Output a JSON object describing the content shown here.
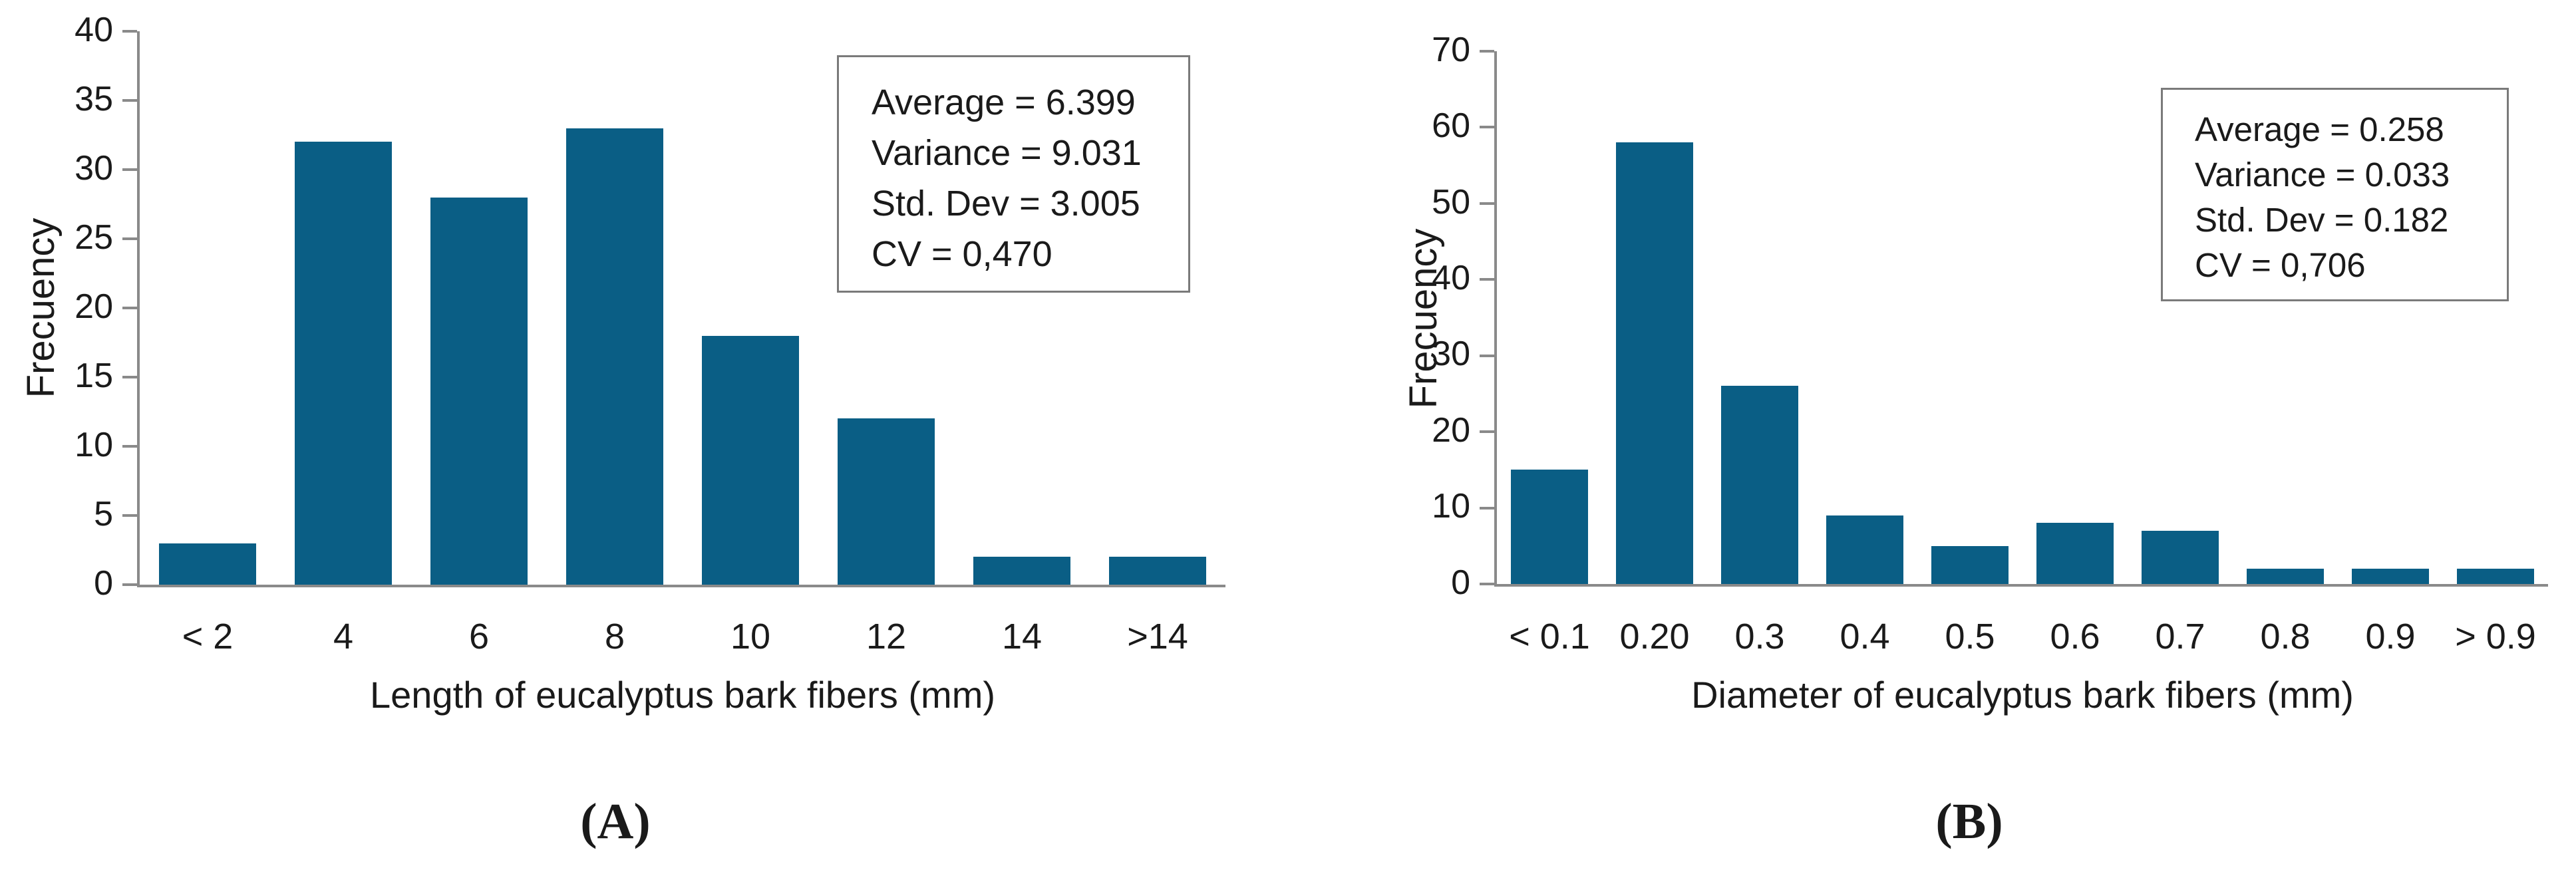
{
  "figure": {
    "background": "#ffffff",
    "bar_color": "#0a5e85",
    "axis_color": "#8a8a8a",
    "box_border_color": "#7a7a7a",
    "text_color": "#1a1a1a"
  },
  "chart_data": [
    {
      "type": "bar",
      "panel_label": "(A)",
      "ylabel": "Frecuency",
      "xlabel": "Length of eucalyptus bark fibers (mm)",
      "categories": [
        "< 2",
        "4",
        "6",
        "8",
        "10",
        "12",
        "14",
        ">14"
      ],
      "values": [
        3,
        32,
        28,
        33,
        18,
        12,
        2,
        2
      ],
      "ylim": [
        0,
        40
      ],
      "ytick_step": 5,
      "ytick_labels": [
        "0",
        "5",
        "10",
        "15",
        "20",
        "25",
        "30",
        "35",
        "40"
      ],
      "grid": false,
      "legend": false,
      "annotation": {
        "position": "top-right",
        "lines": [
          "Average = 6.399",
          "Variance = 9.031",
          "Std. Dev = 3.005",
          "CV = 0,470"
        ]
      }
    },
    {
      "type": "bar",
      "panel_label": "(B)",
      "ylabel": "Frecuency",
      "xlabel": "Diameter of eucalyptus bark fibers (mm)",
      "categories": [
        "< 0.1",
        "0.20",
        "0.3",
        "0.4",
        "0.5",
        "0.6",
        "0.7",
        "0.8",
        "0.9",
        "> 0.9"
      ],
      "values": [
        15,
        58,
        26,
        9,
        5,
        8,
        7,
        2,
        2,
        2
      ],
      "ylim": [
        0,
        70
      ],
      "ytick_step": 10,
      "ytick_labels": [
        "0",
        "10",
        "20",
        "30",
        "40",
        "50",
        "60",
        "70"
      ],
      "grid": false,
      "legend": false,
      "annotation": {
        "position": "top-right",
        "lines": [
          "Average = 0.258",
          "Variance = 0.033",
          "Std. Dev = 0.182",
          "CV = 0,706"
        ]
      }
    }
  ]
}
